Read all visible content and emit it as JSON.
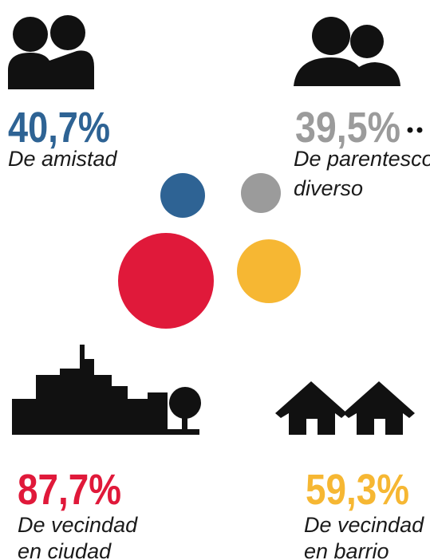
{
  "items": [
    {
      "percent": "40,7%",
      "label": [
        "De amistad"
      ]
    },
    {
      "percent": "39,5%",
      "label": [
        "De parentesco",
        "diverso"
      ]
    },
    {
      "percent": "87,7%",
      "label": [
        "De vecindad",
        "en ciudad"
      ]
    },
    {
      "percent": "59,3%",
      "label": [
        "De vecindad",
        "en barrio"
      ]
    }
  ]
}
